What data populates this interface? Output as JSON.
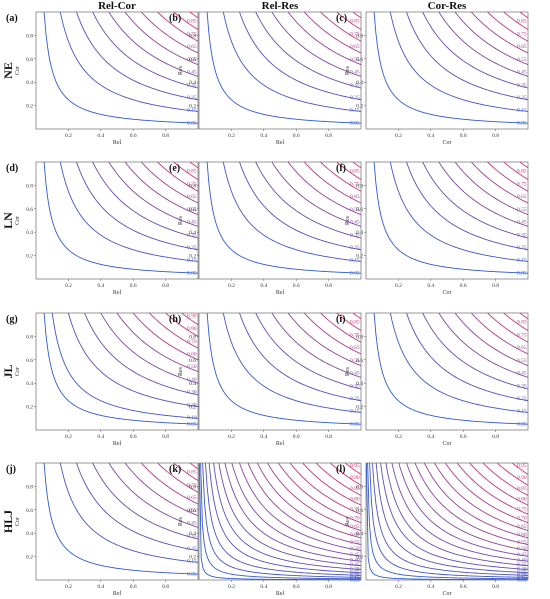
{
  "columns": [
    "Rel-Cor",
    "Rel-Res",
    "Cor-Res"
  ],
  "rows": [
    "NE",
    "LN",
    "JL",
    "HLJ"
  ],
  "colors": {
    "low": "#2f5bd0",
    "high": "#e0306a",
    "axis": "#555555",
    "text": "#111111"
  },
  "chart_data": {
    "type": "contour",
    "xlim": [
      0,
      1
    ],
    "ylim": [
      0,
      1
    ],
    "xticks": [
      "0.2",
      "0.4",
      "0.6",
      "0.8"
    ],
    "yticks": [
      "0.2",
      "0.4",
      "0.6",
      "0.8"
    ],
    "panels": [
      {
        "label": "(a)",
        "row": 0,
        "col": 0,
        "xlabel": "Rel",
        "ylabel": "Cor",
        "levels": [
          "0.05",
          "0.15",
          "0.25",
          "0.35",
          "0.45",
          "0.55",
          "0.65",
          "0.75",
          "0.85",
          "0.95"
        ],
        "power": 1.0
      },
      {
        "label": "(b)",
        "row": 0,
        "col": 1,
        "xlabel": "Rel",
        "ylabel": "Res",
        "levels": [
          "0.05",
          "0.15",
          "0.25",
          "0.35",
          "0.45",
          "0.55",
          "0.65",
          "0.75",
          "0.85",
          "0.95"
        ],
        "power": 1.0
      },
      {
        "label": "(c)",
        "row": 0,
        "col": 2,
        "xlabel": "Cor",
        "ylabel": "Res",
        "levels": [
          "0.05",
          "0.15",
          "0.25",
          "0.35",
          "0.45",
          "0.55",
          "0.65",
          "0.75",
          "0.85",
          "0.95"
        ],
        "power": 1.0
      },
      {
        "label": "(d)",
        "row": 1,
        "col": 0,
        "xlabel": "Rel",
        "ylabel": "Cor",
        "levels": [
          "0.05",
          "0.15",
          "0.25",
          "0.35",
          "0.45",
          "0.55",
          "0.65",
          "0.75",
          "0.85",
          "0.95"
        ],
        "power": 1.0
      },
      {
        "label": "(e)",
        "row": 1,
        "col": 1,
        "xlabel": "Rel",
        "ylabel": "Res",
        "levels": [
          "0.05",
          "0.15",
          "0.25",
          "0.35",
          "0.45",
          "0.55",
          "0.65",
          "0.75",
          "0.85",
          "0.95"
        ],
        "power": 1.0
      },
      {
        "label": "(f)",
        "row": 1,
        "col": 2,
        "xlabel": "Cor",
        "ylabel": "Res",
        "levels": [
          "0.05",
          "0.15",
          "0.25",
          "0.35",
          "0.45",
          "0.55",
          "0.65",
          "0.75",
          "0.85",
          "0.95"
        ],
        "power": 1.0
      },
      {
        "label": "(g)",
        "row": 2,
        "col": 0,
        "xlabel": "Rel",
        "ylabel": "Cor",
        "levels": [
          "0.05",
          "0.10",
          "0.20",
          "0.30",
          "0.40",
          "0.50",
          "0.60",
          "0.70",
          "0.80",
          "0.90"
        ],
        "power": 1.0
      },
      {
        "label": "(h)",
        "row": 2,
        "col": 1,
        "xlabel": "Rel",
        "ylabel": "Res",
        "levels": [
          "0.05",
          "0.15",
          "0.25",
          "0.35",
          "0.45",
          "0.55",
          "0.65",
          "0.75",
          "0.85",
          "0.95"
        ],
        "power": 1.0
      },
      {
        "label": "(i)",
        "row": 2,
        "col": 2,
        "xlabel": "Cor",
        "ylabel": "Res",
        "levels": [
          "0.05",
          "0.15",
          "0.25",
          "0.35",
          "0.45",
          "0.55",
          "0.65",
          "0.75",
          "0.85",
          "0.95"
        ],
        "power": 1.0
      },
      {
        "label": "(j)",
        "row": 3,
        "col": 0,
        "xlabel": "Rel",
        "ylabel": "Cor",
        "levels": [
          "0.05",
          "0.15",
          "0.25",
          "0.35",
          "0.45",
          "0.55",
          "0.65",
          "0.75",
          "0.85",
          "0.95"
        ],
        "power": 1.0
      },
      {
        "label": "(k)",
        "row": 3,
        "col": 1,
        "xlabel": "Rel",
        "ylabel": "Res",
        "levels": [
          "0.05",
          "0.10",
          "0.15",
          "0.20",
          "0.25",
          "0.30",
          "0.35",
          "0.40",
          "0.45",
          "0.50",
          "0.55",
          "0.60",
          "0.65",
          "0.70",
          "0.75",
          "0.80",
          "0.85",
          "0.90",
          "0.95"
        ],
        "power": 0.5
      },
      {
        "label": "(l)",
        "row": 3,
        "col": 2,
        "xlabel": "Cor",
        "ylabel": "Res",
        "levels": [
          "0.05",
          "0.10",
          "0.15",
          "0.20",
          "0.25",
          "0.30",
          "0.35",
          "0.40",
          "0.45",
          "0.50",
          "0.55",
          "0.60",
          "0.65",
          "0.70",
          "0.75",
          "0.80",
          "0.85",
          "0.90",
          "0.95"
        ],
        "power": 0.5
      }
    ]
  }
}
